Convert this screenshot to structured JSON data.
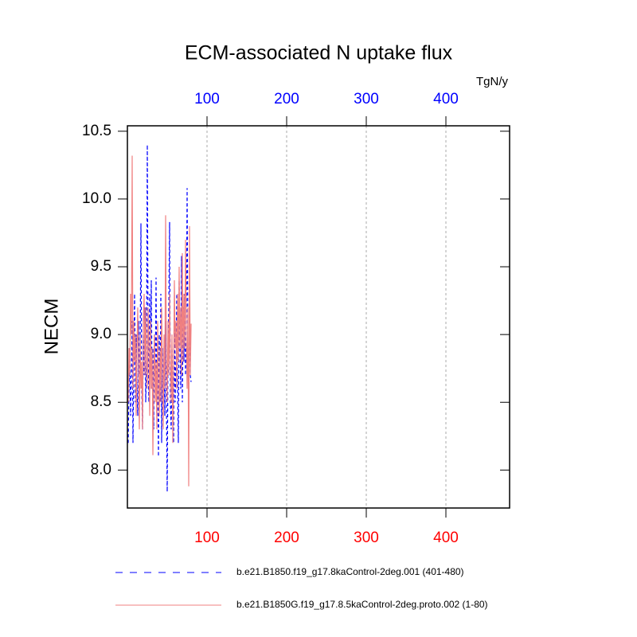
{
  "chart_data": {
    "type": "line",
    "title": "ECM-associated N uptake flux",
    "ylabel": "NECM",
    "x2label": "TgN/y",
    "x": [
      1,
      2,
      3,
      4,
      5,
      6,
      7,
      8,
      9,
      10,
      11,
      12,
      13,
      14,
      15,
      16,
      17,
      18,
      19,
      20,
      21,
      22,
      23,
      24,
      25,
      26,
      27,
      28,
      29,
      30,
      31,
      32,
      33,
      34,
      35,
      36,
      37,
      38,
      39,
      40,
      41,
      42,
      43,
      44,
      45,
      46,
      47,
      48,
      49,
      50,
      51,
      52,
      53,
      54,
      55,
      56,
      57,
      58,
      59,
      60,
      61,
      62,
      63,
      64,
      65,
      66,
      67,
      68,
      69,
      70,
      71,
      72,
      73,
      74,
      75,
      76,
      77,
      78,
      79,
      80
    ],
    "series": [
      {
        "name": "b.e21.B1850.f19_g17.8kaControl-2deg.001 (401-480)",
        "color": "#0000ff",
        "dash": true,
        "values": [
          8.2,
          8.6,
          8.9,
          8.4,
          8.7,
          9.1,
          8.2,
          8.8,
          9.3,
          8.5,
          9.0,
          8.6,
          8.4,
          9.1,
          8.7,
          8.9,
          9.82,
          8.6,
          8.3,
          9.0,
          8.7,
          9.2,
          8.5,
          8.8,
          10.4,
          8.9,
          8.5,
          9.3,
          8.8,
          9.4,
          8.6,
          8.9,
          8.3,
          9.0,
          8.7,
          9.42,
          8.4,
          8.8,
          8.1,
          9.0,
          8.5,
          9.3,
          8.2,
          8.9,
          8.6,
          8.8,
          8.4,
          9.1,
          8.5,
          7.84,
          8.9,
          9.2,
          9.83,
          8.5,
          8.3,
          8.9,
          8.6,
          8.2,
          9.1,
          8.5,
          8.8,
          9.3,
          8.6,
          8.2,
          9.4,
          8.9,
          8.6,
          9.58,
          8.5,
          9.2,
          8.8,
          9.3,
          8.7,
          9.0,
          10.08,
          8.9,
          8.6,
          9.2,
          8.7,
          8.65
        ]
      },
      {
        "name": "b.e21.B1850G.f19_g17.8.5kaControl-2deg.proto.002 (1-80)",
        "color": "#f08080",
        "dash": false,
        "values": [
          8.5,
          8.9,
          8.7,
          9.3,
          9.0,
          10.32,
          8.6,
          9.1,
          8.8,
          9.0,
          8.4,
          8.9,
          9.2,
          8.7,
          8.3,
          9.0,
          8.6,
          8.8,
          8.3,
          9.1,
          9.3,
          8.7,
          9.2,
          8.8,
          8.6,
          9.2,
          8.9,
          8.4,
          9.1,
          8.6,
          8.9,
          8.11,
          8.7,
          9.0,
          8.5,
          8.8,
          8.3,
          9.1,
          8.6,
          8.4,
          8.9,
          8.5,
          9.2,
          8.7,
          8.3,
          9.0,
          8.6,
          9.88,
          8.8,
          8.5,
          9.1,
          8.7,
          9.3,
          8.8,
          8.5,
          9.0,
          8.2,
          8.7,
          9.4,
          8.9,
          9.1,
          8.6,
          9.3,
          8.8,
          9.5,
          8.9,
          9.2,
          8.7,
          9.6,
          8.8,
          9.3,
          8.9,
          9.7,
          9.0,
          8.6,
          9.2,
          7.88,
          9.8,
          8.7,
          9.08
        ]
      }
    ],
    "xlim": [
      0,
      480
    ],
    "xticks": [
      100,
      200,
      300,
      400
    ],
    "x2lim": [
      0,
      480
    ],
    "x2ticks": [
      100,
      200,
      300,
      400
    ],
    "xtick_color": "#ff0000",
    "x2tick_color": "#0000ff",
    "ylim": [
      7.72,
      10.54
    ],
    "yticks": [
      {
        "value": 8,
        "label": "8.0"
      },
      {
        "value": 8.5,
        "label": "8.5"
      },
      {
        "value": 9,
        "label": "9.0"
      },
      {
        "value": 9.5,
        "label": "9.5"
      },
      {
        "value": 10,
        "label": "10.0"
      },
      {
        "value": 10.5,
        "label": "10.5"
      }
    ],
    "grid": true
  }
}
